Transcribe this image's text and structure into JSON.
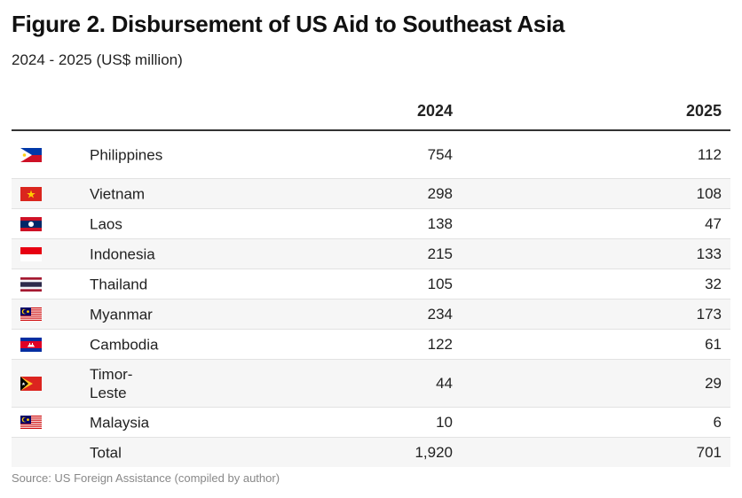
{
  "chart_data": {
    "type": "table",
    "title": "Figure 2. Disbursement of US Aid to Southeast Asia",
    "subtitle": "2024 - 2025 (US$ million)",
    "columns": [
      "",
      "",
      "2024",
      "2025"
    ],
    "rows": [
      {
        "flag": "philippines-flag-icon",
        "country": "Philippines",
        "y2024": "754",
        "y2025": "112"
      },
      {
        "flag": "vietnam-flag-icon",
        "country": "Vietnam",
        "y2024": "298",
        "y2025": "108"
      },
      {
        "flag": "laos-flag-icon",
        "country": "Laos",
        "y2024": "138",
        "y2025": "47"
      },
      {
        "flag": "indonesia-flag-icon",
        "country": "Indonesia",
        "y2024": "215",
        "y2025": "133"
      },
      {
        "flag": "thailand-flag-icon",
        "country": "Thailand",
        "y2024": "105",
        "y2025": "32"
      },
      {
        "flag": "malaysia-flag-icon",
        "country": "Myanmar",
        "y2024": "234",
        "y2025": "173"
      },
      {
        "flag": "cambodia-flag-icon",
        "country": "Cambodia",
        "y2024": "122",
        "y2025": "61"
      },
      {
        "flag": "timor-leste-flag-icon",
        "country": "Timor-Leste",
        "y2024": "44",
        "y2025": "29"
      },
      {
        "flag": "malaysia-flag-icon",
        "country": "Malaysia",
        "y2024": "10",
        "y2025": "6"
      }
    ],
    "total": {
      "label": "Total",
      "y2024": "1,920",
      "y2025": "701"
    },
    "source": "Source: US Foreign Assistance (compiled by author)"
  }
}
